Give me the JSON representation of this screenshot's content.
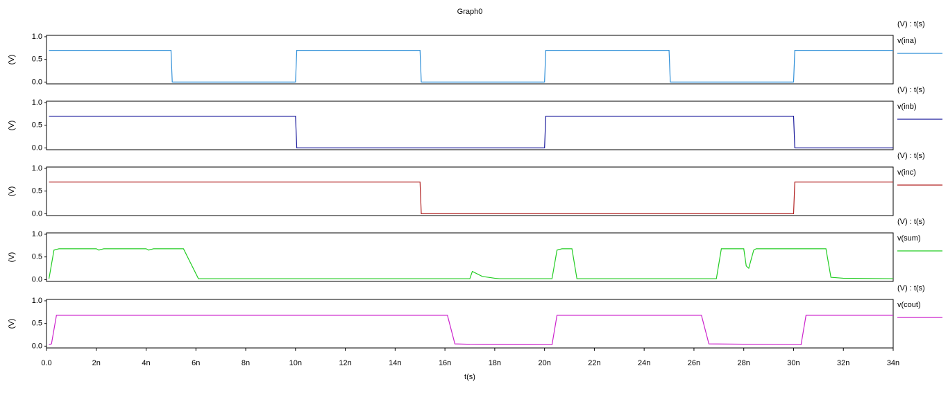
{
  "chart_data": [
    {
      "type": "line",
      "title": "Graph0",
      "ylabel": "(V)",
      "legend_title": "(V) : t(s)",
      "x": [
        1e-10,
        5e-09,
        5.05e-09,
        1e-08,
        1.005e-08,
        1.5e-08,
        1.505e-08,
        2e-08,
        2.005e-08,
        2.5e-08,
        2.505e-08,
        3e-08,
        3.005e-08,
        3.4e-08
      ],
      "series": [
        {
          "name": "v(ina)",
          "color": "#2f8fd8",
          "values": [
            0.7,
            0.7,
            0,
            0,
            0.7,
            0.7,
            0,
            0,
            0.7,
            0.7,
            0,
            0,
            0.7,
            0.7
          ]
        }
      ],
      "xlim": [
        0,
        3.4e-08
      ],
      "ylim": [
        -0.04,
        1.03
      ],
      "yticks": [
        {
          "value": 0,
          "label": "0.0"
        },
        0.5,
        {
          "value": 1,
          "label": "1.0"
        }
      ]
    },
    {
      "type": "line",
      "ylabel": "(V)",
      "legend_title": "(V) : t(s)",
      "x": [
        1e-10,
        1e-08,
        1.005e-08,
        2e-08,
        2.005e-08,
        3e-08,
        3.005e-08,
        3.4e-08
      ],
      "series": [
        {
          "name": "v(inb)",
          "color": "#1c1c9c",
          "values": [
            0.7,
            0.7,
            0,
            0,
            0.7,
            0.7,
            0,
            0
          ]
        }
      ],
      "xlim": [
        0,
        3.4e-08
      ],
      "ylim": [
        -0.04,
        1.03
      ],
      "yticks": [
        {
          "value": 0,
          "label": "0.0"
        },
        0.5,
        {
          "value": 1,
          "label": "1.0"
        }
      ]
    },
    {
      "type": "line",
      "ylabel": "(V)",
      "legend_title": "(V) : t(s)",
      "x": [
        1e-10,
        1.5e-08,
        1.505e-08,
        3e-08,
        3.005e-08,
        3.4e-08
      ],
      "series": [
        {
          "name": "v(inc)",
          "color": "#b22222",
          "values": [
            0.7,
            0.7,
            0,
            0,
            0.7,
            0.7
          ]
        }
      ],
      "xlim": [
        0,
        3.4e-08
      ],
      "ylim": [
        -0.04,
        1.03
      ],
      "yticks": [
        {
          "value": 0,
          "label": "0.0"
        },
        0.5,
        {
          "value": 1,
          "label": "1.0"
        }
      ]
    },
    {
      "type": "line",
      "ylabel": "(V)",
      "legend_title": "(V) : t(s)",
      "x": [
        1e-10,
        3e-10,
        5e-10,
        2e-09,
        2.1e-09,
        2.3e-09,
        4e-09,
        4.1e-09,
        4.3e-09,
        5.5e-09,
        5.8e-09,
        6.1e-09,
        1.7e-08,
        1.71e-08,
        1.75e-08,
        1.8e-08,
        1.82e-08,
        2.03e-08,
        2.05e-08,
        2.07e-08,
        2.11e-08,
        2.13e-08,
        2.69e-08,
        2.71e-08,
        2.8e-08,
        2.81e-08,
        2.82e-08,
        2.84e-08,
        2.85e-08,
        3.13e-08,
        3.15e-08,
        3.2e-08,
        3.4e-08
      ],
      "series": [
        {
          "name": "v(sum)",
          "color": "#22cc22",
          "values": [
            0.02,
            0.65,
            0.68,
            0.68,
            0.65,
            0.68,
            0.68,
            0.65,
            0.68,
            0.68,
            0.35,
            0.02,
            0.02,
            0.18,
            0.07,
            0.03,
            0.02,
            0.02,
            0.65,
            0.68,
            0.68,
            0.02,
            0.02,
            0.68,
            0.68,
            0.3,
            0.25,
            0.65,
            0.68,
            0.68,
            0.05,
            0.03,
            0.02
          ]
        }
      ],
      "xlim": [
        0,
        3.4e-08
      ],
      "ylim": [
        -0.04,
        1.03
      ],
      "yticks": [
        {
          "value": 0,
          "label": "0.0"
        },
        0.5,
        {
          "value": 1,
          "label": "1.0"
        }
      ]
    },
    {
      "type": "line",
      "ylabel": "(V)",
      "legend_title": "(V) : t(s)",
      "xlabel": "t(s)",
      "x": [
        1e-10,
        2e-10,
        4e-10,
        1.61e-08,
        1.64e-08,
        1.7e-08,
        2.03e-08,
        2.05e-08,
        2.63e-08,
        2.66e-08,
        3.03e-08,
        3.05e-08,
        3.4e-08
      ],
      "series": [
        {
          "name": "v(cout)",
          "color": "#cc22cc",
          "values": [
            0.03,
            0.05,
            0.68,
            0.68,
            0.05,
            0.04,
            0.03,
            0.68,
            0.68,
            0.05,
            0.03,
            0.68,
            0.68
          ]
        }
      ],
      "xlim": [
        0,
        3.4e-08
      ],
      "ylim": [
        -0.04,
        1.03
      ],
      "yticks": [
        {
          "value": 0,
          "label": "0.0"
        },
        0.5,
        {
          "value": 1,
          "label": "1.0"
        }
      ],
      "xticks": [
        {
          "value": 0,
          "label": "0.0"
        },
        {
          "value": 2e-09,
          "label": "2n"
        },
        {
          "value": 4e-09,
          "label": "4n"
        },
        {
          "value": 6e-09,
          "label": "6n"
        },
        {
          "value": 8e-09,
          "label": "8n"
        },
        {
          "value": 1e-08,
          "label": "10n"
        },
        {
          "value": 1.2e-08,
          "label": "12n"
        },
        {
          "value": 1.4e-08,
          "label": "14n"
        },
        {
          "value": 1.6e-08,
          "label": "16n"
        },
        {
          "value": 1.8e-08,
          "label": "18n"
        },
        {
          "value": 2e-08,
          "label": "20n"
        },
        {
          "value": 2.2e-08,
          "label": "22n"
        },
        {
          "value": 2.4e-08,
          "label": "24n"
        },
        {
          "value": 2.6e-08,
          "label": "26n"
        },
        {
          "value": 2.8e-08,
          "label": "28n"
        },
        {
          "value": 3e-08,
          "label": "30n"
        },
        {
          "value": 3.2e-08,
          "label": "32n"
        },
        {
          "value": 3.4e-08,
          "label": "34n"
        }
      ]
    }
  ]
}
